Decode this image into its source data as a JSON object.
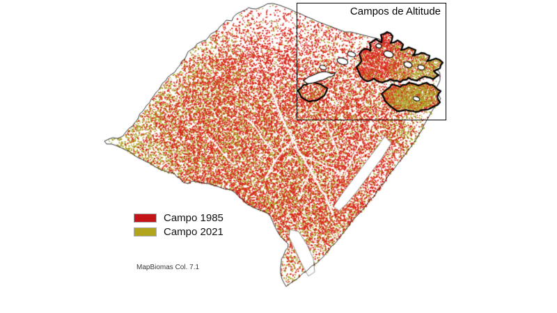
{
  "inset": {
    "title": "Campos de Altitude"
  },
  "legend": {
    "items": [
      {
        "label": "Campo 1985",
        "color": "#c31419"
      },
      {
        "label": "Campo 2021",
        "color": "#b1a51e"
      }
    ]
  },
  "attribution": "MapBiomas Col. 7.1",
  "map": {
    "colors": {
      "campo_1985_dots": "#da251c",
      "campo_2021_dots": "#aba125",
      "state_outline": "#1b1b1b",
      "highlight_outline": "#000000",
      "water": "#ffffff",
      "background": "#ffffff"
    }
  }
}
